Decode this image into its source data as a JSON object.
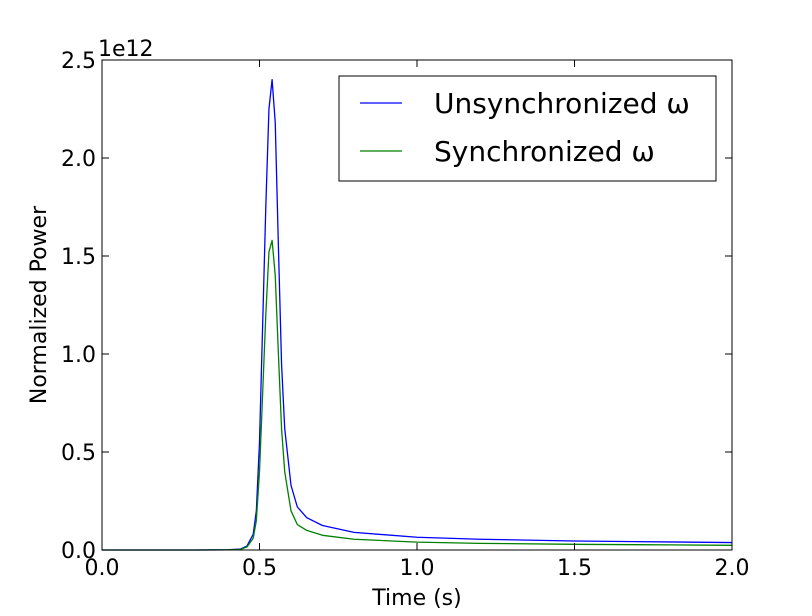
{
  "chart_data": {
    "type": "line",
    "xlabel": "Time (s)",
    "ylabel": "Normalized Power",
    "offset_label": "1e12",
    "xlim": [
      0.0,
      2.0
    ],
    "ylim": [
      0.0,
      2.5
    ],
    "xticks": [
      0.0,
      0.5,
      1.0,
      1.5,
      2.0
    ],
    "xtick_labels": [
      "0.0",
      "0.5",
      "1.0",
      "1.5",
      "2.0"
    ],
    "yticks": [
      0.0,
      0.5,
      1.0,
      1.5,
      2.0,
      2.5
    ],
    "ytick_labels": [
      "0.0",
      "0.5",
      "1.0",
      "1.5",
      "2.0",
      "2.5"
    ],
    "grid": false,
    "legend_position": "top-right",
    "series": [
      {
        "name": "Unsynchronized ω",
        "color": "#0000ff",
        "x": [
          0.0,
          0.3,
          0.4,
          0.44,
          0.46,
          0.48,
          0.49,
          0.5,
          0.51,
          0.52,
          0.53,
          0.54,
          0.55,
          0.56,
          0.57,
          0.58,
          0.6,
          0.62,
          0.65,
          0.7,
          0.8,
          1.0,
          1.2,
          1.5,
          1.8,
          2.0
        ],
        "y": [
          0.0,
          0.0,
          0.001,
          0.005,
          0.02,
          0.08,
          0.2,
          0.55,
          1.15,
          1.75,
          2.25,
          2.4,
          2.18,
          1.55,
          0.95,
          0.62,
          0.33,
          0.22,
          0.165,
          0.125,
          0.09,
          0.065,
          0.055,
          0.046,
          0.041,
          0.038
        ]
      },
      {
        "name": "Synchronized ω",
        "color": "#008000",
        "x": [
          0.0,
          0.3,
          0.4,
          0.44,
          0.46,
          0.48,
          0.49,
          0.5,
          0.51,
          0.52,
          0.53,
          0.54,
          0.55,
          0.56,
          0.57,
          0.58,
          0.6,
          0.62,
          0.65,
          0.7,
          0.8,
          1.0,
          1.2,
          1.5,
          1.8,
          2.0
        ],
        "y": [
          0.0,
          0.0,
          0.001,
          0.004,
          0.015,
          0.06,
          0.15,
          0.4,
          0.8,
          1.2,
          1.52,
          1.58,
          1.4,
          1.0,
          0.62,
          0.4,
          0.2,
          0.13,
          0.1,
          0.075,
          0.055,
          0.04,
          0.034,
          0.029,
          0.026,
          0.024
        ]
      }
    ]
  }
}
